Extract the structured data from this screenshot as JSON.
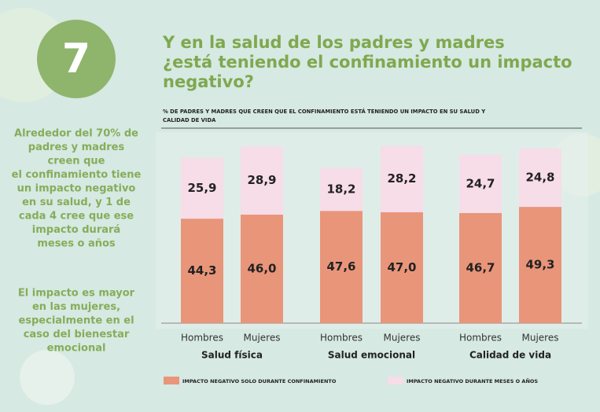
{
  "badge": "7",
  "side_text": {
    "first": [
      "Alrededor del 70% de",
      "padres y madres",
      "creen que",
      "el confinamiento tiene",
      "un impacto negativo",
      "en su salud, y 1 de",
      "cada 4 cree que ese",
      "impacto durará",
      "meses o años"
    ],
    "second": [
      "El impacto es mayor",
      "en las mujeres,",
      "especialmente en el",
      "caso del bienestar",
      "emocional"
    ]
  },
  "chart_data": {
    "type": "stacked_bar",
    "title": [
      "Y en la salud de los padres y madres",
      "¿está teniendo el confinamiento un impacto",
      "negativo?"
    ],
    "subtitle": [
      "% DE PADRES Y MADRES QUE CREEN QUE EL CONFINAMIENTO ESTÁ TENIENDO UN IMPACTO EN SU SALUD Y",
      "CALIDAD DE VIDA"
    ],
    "categories": [
      "Hombres",
      "Mujeres",
      "Hombres",
      "Mujeres",
      "Hombres",
      "Mujeres"
    ],
    "groups": [
      "Salud física",
      "Salud emocional",
      "Calidad de vida"
    ],
    "series": [
      {
        "name": "IMPACTO NEGATIVO SOLO DURANTE CONFINAMIENTO",
        "color": "#e9957a",
        "values": [
          44.3,
          46.0,
          47.6,
          47.0,
          46.7,
          49.3
        ],
        "value_labels": [
          "44,3",
          "46,0",
          "47,6",
          "47,0",
          "46,7",
          "49,3"
        ]
      },
      {
        "name": "IMPACTO NEGATIVO DURANTE MESES O AÑOS",
        "color": "#f6dde8",
        "values": [
          25.9,
          28.9,
          18.2,
          28.2,
          24.7,
          24.8
        ],
        "value_labels": [
          "25,9",
          "28,9",
          "18,2",
          "28,2",
          "24,7",
          "24,8"
        ]
      }
    ]
  }
}
